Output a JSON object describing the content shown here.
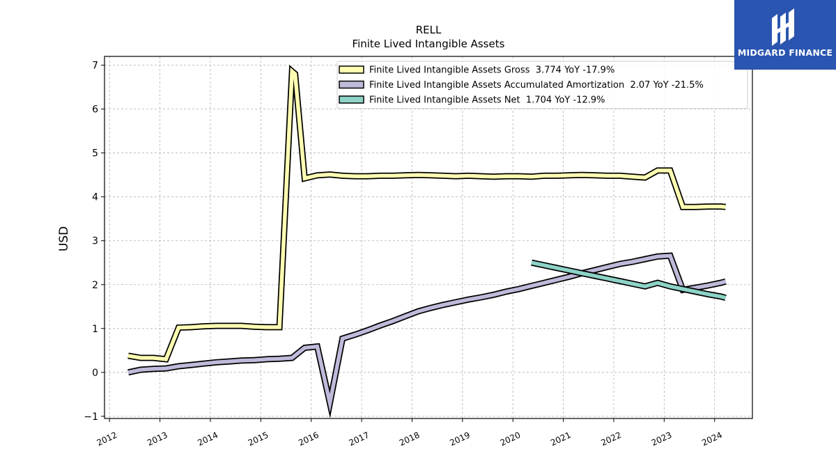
{
  "chart_data": {
    "type": "line",
    "title": "RELL",
    "subtitle": "Finite Lived Intangible Assets",
    "ylabel": "USD",
    "xlabel": "",
    "xlim": [
      2011.9,
      2024.75
    ],
    "ylim": [
      -1.05,
      7.2
    ],
    "yticks": [
      -1,
      0,
      1,
      2,
      3,
      4,
      5,
      6,
      7
    ],
    "xticks": [
      2012,
      2013,
      2014,
      2015,
      2016,
      2017,
      2018,
      2019,
      2020,
      2021,
      2022,
      2023,
      2024
    ],
    "grid": true,
    "legend_position": "top-right",
    "series": [
      {
        "name": "Finite Lived Intangible Assets Gross  3.774 YoY -17.9%",
        "color": "#ffffb3",
        "x": [
          2012.37,
          2012.62,
          2012.87,
          2013.12,
          2013.37,
          2013.62,
          2013.87,
          2014.12,
          2014.37,
          2014.62,
          2014.87,
          2015.12,
          2015.37,
          2015.62,
          2015.68,
          2015.87,
          2016.12,
          2016.37,
          2016.62,
          2016.87,
          2017.12,
          2017.37,
          2017.62,
          2017.87,
          2018.12,
          2018.37,
          2018.62,
          2018.87,
          2019.12,
          2019.37,
          2019.62,
          2019.87,
          2020.12,
          2020.37,
          2020.62,
          2020.87,
          2021.12,
          2021.37,
          2021.62,
          2021.87,
          2022.12,
          2022.37,
          2022.62,
          2022.87,
          2023.12,
          2023.37,
          2023.62,
          2023.87,
          2024.12,
          2024.22
        ],
        "values": [
          0.38,
          0.33,
          0.33,
          0.3,
          1.02,
          1.03,
          1.05,
          1.06,
          1.06,
          1.06,
          1.04,
          1.03,
          1.03,
          6.86,
          6.8,
          4.42,
          4.49,
          4.51,
          4.48,
          4.47,
          4.47,
          4.48,
          4.48,
          4.49,
          4.5,
          4.49,
          4.48,
          4.47,
          4.48,
          4.47,
          4.46,
          4.47,
          4.47,
          4.46,
          4.48,
          4.48,
          4.49,
          4.5,
          4.49,
          4.48,
          4.48,
          4.46,
          4.44,
          4.6,
          4.6,
          3.77,
          3.77,
          3.78,
          3.78,
          3.77
        ]
      },
      {
        "name": "Finite Lived Intangible Assets Accumulated Amortization  2.07 YoY -21.5%",
        "color": "#bebada",
        "x": [
          2012.37,
          2012.62,
          2012.87,
          2013.12,
          2013.37,
          2013.62,
          2013.87,
          2014.12,
          2014.37,
          2014.62,
          2014.87,
          2015.12,
          2015.37,
          2015.62,
          2015.87,
          2016.12,
          2016.37,
          2016.62,
          2016.87,
          2017.12,
          2017.37,
          2017.62,
          2017.87,
          2018.12,
          2018.37,
          2018.62,
          2018.87,
          2019.12,
          2019.37,
          2019.62,
          2019.87,
          2020.12,
          2020.37,
          2020.62,
          2020.87,
          2021.12,
          2021.37,
          2021.62,
          2021.87,
          2022.12,
          2022.37,
          2022.62,
          2022.87,
          2023.12,
          2023.37,
          2023.62,
          2023.87,
          2024.12,
          2024.22
        ],
        "values": [
          0.0,
          0.06,
          0.08,
          0.09,
          0.14,
          0.17,
          0.2,
          0.23,
          0.25,
          0.27,
          0.28,
          0.3,
          0.31,
          0.33,
          0.56,
          0.59,
          -0.7,
          0.77,
          0.86,
          0.96,
          1.07,
          1.17,
          1.28,
          1.39,
          1.47,
          1.54,
          1.6,
          1.66,
          1.71,
          1.77,
          1.84,
          1.9,
          1.97,
          2.04,
          2.11,
          2.18,
          2.26,
          2.33,
          2.4,
          2.47,
          2.52,
          2.58,
          2.64,
          2.66,
          1.88,
          1.93,
          1.98,
          2.04,
          2.07
        ]
      },
      {
        "name": "Finite Lived Intangible Assets Net  1.704 YoY -12.9%",
        "color": "#8dd3c7",
        "x": [
          2020.37,
          2020.62,
          2020.87,
          2021.12,
          2021.37,
          2021.62,
          2021.87,
          2022.12,
          2022.37,
          2022.62,
          2022.87,
          2023.12,
          2023.37,
          2023.62,
          2023.87,
          2024.12,
          2024.22
        ],
        "values": [
          2.5,
          2.44,
          2.38,
          2.32,
          2.26,
          2.2,
          2.14,
          2.08,
          2.02,
          1.96,
          2.04,
          1.96,
          1.9,
          1.84,
          1.78,
          1.73,
          1.7
        ]
      }
    ]
  },
  "logo": {
    "text": "MIDGARD FINANCE",
    "background": "#2a55b0"
  }
}
